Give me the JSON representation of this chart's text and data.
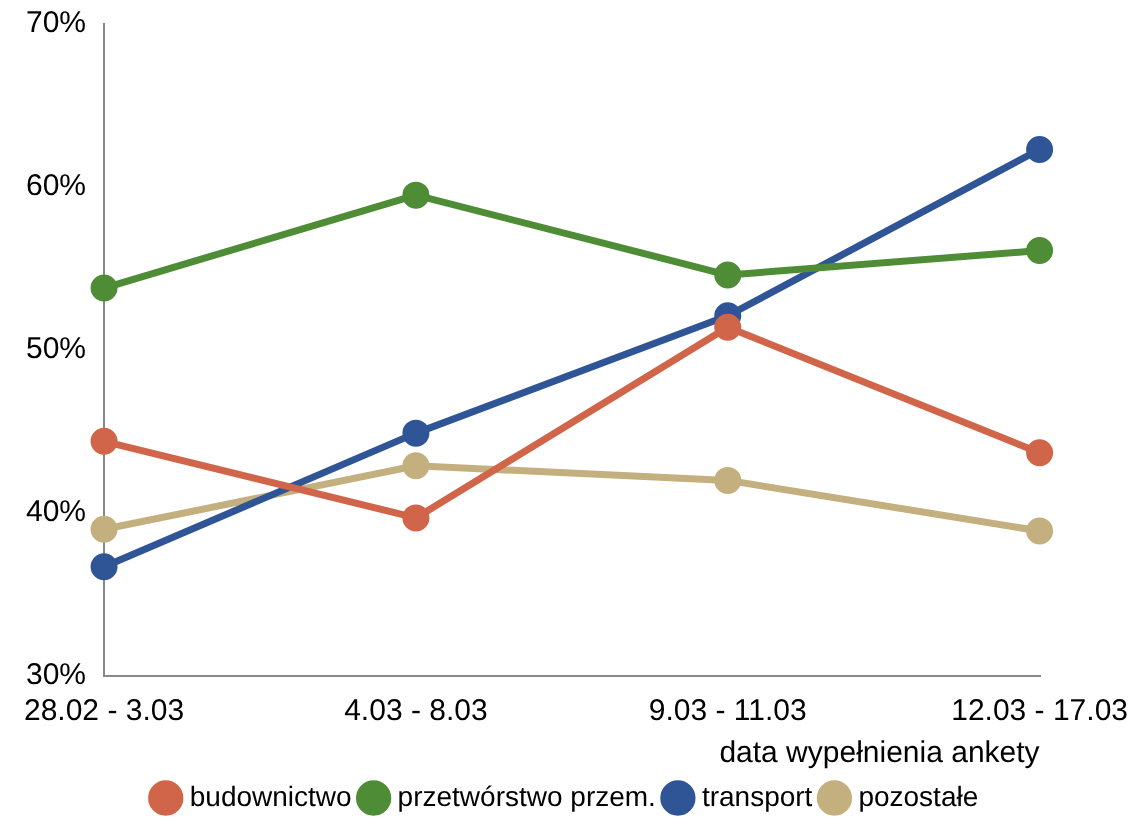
{
  "chart_data": {
    "type": "line",
    "xlabel": "data wypełnienia ankety",
    "categories": [
      "28.02 - 3.03",
      "4.03 - 8.03",
      "9.03 - 11.03",
      "12.03 - 17.03"
    ],
    "series": [
      {
        "name": "budownictwo",
        "color": "#d0654a",
        "values": [
          44.4,
          39.7,
          51.4,
          43.7
        ]
      },
      {
        "name": "przetwórstwo przem.",
        "color": "#4e8c35",
        "values": [
          53.8,
          59.5,
          54.6,
          56.1
        ]
      },
      {
        "name": "transport",
        "color": "#2f5597",
        "values": [
          36.7,
          44.9,
          52.1,
          62.3
        ]
      },
      {
        "name": "pozostałe",
        "color": "#c4b07f",
        "values": [
          39.0,
          42.9,
          42.0,
          38.9
        ]
      }
    ],
    "ylim": [
      30,
      70
    ],
    "yticks": [
      {
        "value": 30,
        "label": "30%"
      },
      {
        "value": 40,
        "label": "40%"
      },
      {
        "value": 50,
        "label": "50%"
      },
      {
        "value": 60,
        "label": "60%"
      },
      {
        "value": 70,
        "label": "70%"
      }
    ],
    "grid": false,
    "legend": "bottom",
    "marker": "circle",
    "line_style": "solid"
  }
}
